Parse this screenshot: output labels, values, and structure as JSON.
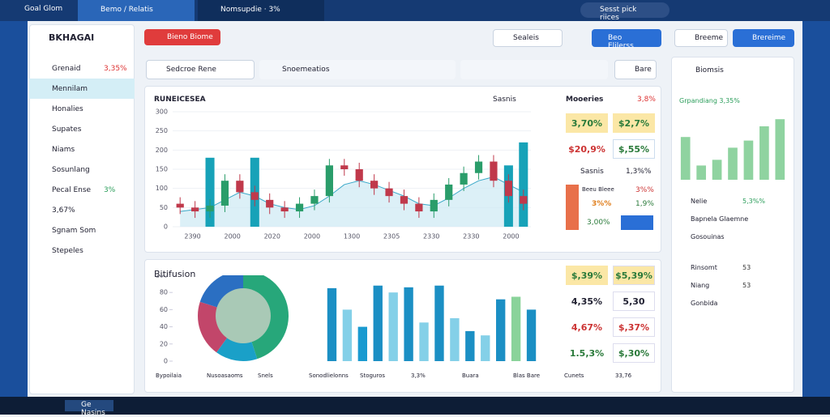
{
  "tabs": [
    "Goal Glom",
    "Bemo / Relatis",
    "Nomsupdie · 3%"
  ],
  "search": "Sesst pick riices",
  "brand": "BKHAGAI",
  "nav": [
    {
      "label": "Grenaid",
      "value": "3,35%"
    },
    {
      "label": "Mennilam"
    },
    {
      "label": "Honalies"
    },
    {
      "label": "Supates"
    },
    {
      "label": "Niams"
    },
    {
      "label": "Sosunlang"
    },
    {
      "label": "Pecal Ense",
      "value": "3%"
    },
    {
      "label": "3,67%"
    },
    {
      "label": "Sgnam Som"
    },
    {
      "label": "Stepeles"
    }
  ],
  "header": {
    "button": "Bieno Biome",
    "search": "Sealeis",
    "action": "Beo Elilerss",
    "right_tab": "Breeme",
    "right_action": "Brereime"
  },
  "filters": {
    "select": "Sedcroe Rene",
    "search": "Snoemeatios",
    "button": "Bare"
  },
  "card1": {
    "title": "RUNEICESEA",
    "tools": "Sasnis",
    "side_title": "Mooeries",
    "side_value": "3,8%",
    "stats": [
      "3,70%",
      "$2,7%",
      "$20,9%",
      "$,55%"
    ],
    "row_label": "Sasnis",
    "row_value": "1,3%%",
    "box_label": "Beeu Bleee",
    "box_value": "3%%",
    "box_value2": "3%%",
    "box_value3": "1,9%",
    "box_value4": "3,00%"
  },
  "chart1": {
    "type": "candlestick",
    "categories": [
      "2390",
      "2000",
      "2020",
      "2000",
      "1300",
      "2305",
      "2330",
      "2330",
      "2000"
    ],
    "ylim": [
      0,
      300
    ],
    "yticks": [
      0,
      50,
      100,
      150,
      200,
      250,
      300
    ],
    "open": [
      60,
      50,
      40,
      55,
      120,
      90,
      70,
      50,
      40,
      60,
      80,
      160,
      150,
      120,
      100,
      80,
      60,
      40,
      70,
      110,
      140,
      170,
      120,
      80
    ],
    "close": [
      50,
      40,
      55,
      120,
      90,
      70,
      50,
      40,
      60,
      80,
      160,
      150,
      120,
      100,
      80,
      60,
      40,
      70,
      110,
      140,
      170,
      120,
      80,
      60
    ],
    "bars": [
      null,
      null,
      180,
      null,
      null,
      180,
      null,
      null,
      null,
      null,
      null,
      null,
      null,
      null,
      null,
      null,
      null,
      null,
      null,
      null,
      null,
      null,
      160,
      220
    ],
    "area": [
      40,
      45,
      50,
      70,
      90,
      80,
      60,
      50,
      45,
      55,
      80,
      110,
      120,
      110,
      95,
      80,
      60,
      55,
      75,
      100,
      120,
      130,
      110,
      90
    ],
    "up_color": "#2a9d6a",
    "down_color": "#c0394b",
    "bar_color": "#17a2b8",
    "area_color": "#cdeaf3"
  },
  "card2": {
    "title": "Bitifusion",
    "stats": [
      "$,39%",
      "$5,39%",
      "4,35%",
      "5,30",
      "4,67%",
      "$,37%",
      "1.5,3%",
      "$,30%"
    ],
    "legend": [
      "Bypoilaia",
      "Nusoasaoms",
      "Snels",
      "Sonodlielonns",
      "Stoguros",
      "3,3%",
      "Buara",
      "Blas Bare",
      "Cunets",
      "33,76"
    ]
  },
  "pie": {
    "type": "pie",
    "values": [
      45,
      15,
      20,
      20
    ],
    "colors": [
      "#27a77a",
      "#1aa0c8",
      "#c2466a",
      "#2b6fc2"
    ]
  },
  "chart2": {
    "type": "bar",
    "ylim": [
      0,
      100
    ],
    "yticks": [
      0,
      20,
      40,
      60,
      80,
      100
    ],
    "values": [
      85,
      60,
      40,
      88,
      80,
      86,
      45,
      88,
      50,
      35,
      30,
      72,
      75,
      60
    ],
    "colors": [
      "#1b8fc4",
      "#84d0e8",
      "#1a9ad0",
      "#1b8fc4",
      "#84d0e8",
      "#1b8fc4",
      "#84d0e8",
      "#1b8fc4",
      "#84d0e8",
      "#1b8fc4",
      "#84d0e8",
      "#1b8fc4",
      "#8ad39a",
      "#1b8fc4"
    ]
  },
  "right": {
    "title": "Biomsis",
    "sub": "Grpandiang 3,35%",
    "items": [
      {
        "label": "Nelie",
        "value": "5,3%%"
      },
      {
        "label": "Bapnela Glaemne"
      },
      {
        "label": "Gosouinas"
      },
      {
        "label": "Rinsomt",
        "value": "53"
      },
      {
        "label": "Niang",
        "value": "53"
      },
      {
        "label": "Gonbida"
      }
    ]
  },
  "chart3": {
    "type": "bar",
    "ylim": [
      0,
      100
    ],
    "values": [
      60,
      20,
      28,
      45,
      55,
      75,
      85
    ],
    "color": "#8fd3a0"
  },
  "taskbar": "Ge Nasins"
}
